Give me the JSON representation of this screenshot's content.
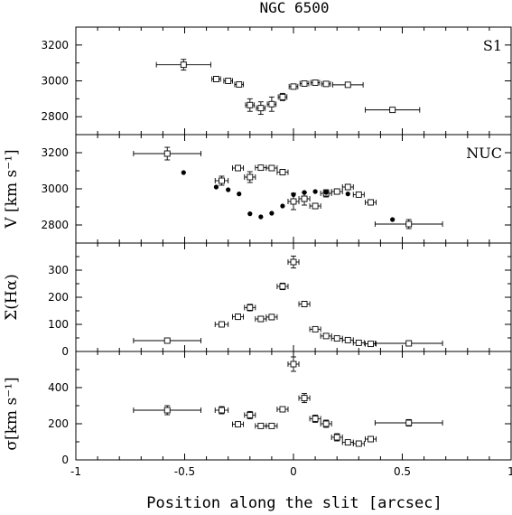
{
  "figure": {
    "title": "NGC 6500",
    "xlabel": "Position along the slit [arcsec]",
    "colors": {
      "ink": "#000000",
      "background": "#ffffff"
    }
  },
  "chart_data": [
    {
      "type": "scatter",
      "panel_label": "S1",
      "ylabel": "",
      "xlim": [
        -1,
        1
      ],
      "ylim": [
        2700,
        3300
      ],
      "yticks": [
        2800,
        3000,
        3200
      ],
      "series": [
        {
          "marker": "open-square",
          "points": [
            {
              "x": -0.505,
              "y": 3090,
              "xerr": 0.125,
              "yerr": 30
            },
            {
              "x": -0.355,
              "y": 3010,
              "xerr": 0.02,
              "yerr": 15
            },
            {
              "x": -0.3,
              "y": 3000,
              "xerr": 0.02,
              "yerr": 12
            },
            {
              "x": -0.25,
              "y": 2980,
              "xerr": 0.02,
              "yerr": 12
            },
            {
              "x": -0.2,
              "y": 2865,
              "xerr": 0.02,
              "yerr": 35
            },
            {
              "x": -0.15,
              "y": 2848,
              "xerr": 0.02,
              "yerr": 35
            },
            {
              "x": -0.1,
              "y": 2870,
              "xerr": 0.02,
              "yerr": 40
            },
            {
              "x": -0.05,
              "y": 2910,
              "xerr": 0.02,
              "yerr": 20
            },
            {
              "x": 0.0,
              "y": 2968,
              "xerr": 0.02,
              "yerr": 12
            },
            {
              "x": 0.05,
              "y": 2985,
              "xerr": 0.02,
              "yerr": 8
            },
            {
              "x": 0.1,
              "y": 2990,
              "xerr": 0.02,
              "yerr": 8
            },
            {
              "x": 0.15,
              "y": 2983,
              "xerr": 0.02,
              "yerr": 8
            },
            {
              "x": 0.25,
              "y": 2978,
              "xerr": 0.07,
              "yerr": 5
            },
            {
              "x": 0.455,
              "y": 2838,
              "xerr": 0.125,
              "yerr": 12
            }
          ]
        }
      ]
    },
    {
      "type": "scatter",
      "panel_label": "NUC",
      "ylabel": "V [km s⁻¹]",
      "xlim": [
        -1,
        1
      ],
      "ylim": [
        2700,
        3300
      ],
      "yticks": [
        2800,
        3000,
        3200
      ],
      "series": [
        {
          "marker": "open-square",
          "points": [
            {
              "x": -0.58,
              "y": 3195,
              "xerr": 0.155,
              "yerr": 35
            },
            {
              "x": -0.33,
              "y": 3045,
              "xerr": 0.03,
              "yerr": 25
            },
            {
              "x": -0.255,
              "y": 3115,
              "xerr": 0.025,
              "yerr": 15
            },
            {
              "x": -0.2,
              "y": 3065,
              "xerr": 0.025,
              "yerr": 30
            },
            {
              "x": -0.15,
              "y": 3117,
              "xerr": 0.025,
              "yerr": 10
            },
            {
              "x": -0.1,
              "y": 3115,
              "xerr": 0.025,
              "yerr": 10
            },
            {
              "x": -0.05,
              "y": 3092,
              "xerr": 0.025,
              "yerr": 15
            },
            {
              "x": 0.0,
              "y": 2930,
              "xerr": 0.025,
              "yerr": 45
            },
            {
              "x": 0.05,
              "y": 2945,
              "xerr": 0.025,
              "yerr": 35
            },
            {
              "x": 0.1,
              "y": 2905,
              "xerr": 0.025,
              "yerr": 15
            },
            {
              "x": 0.15,
              "y": 2975,
              "xerr": 0.025,
              "yerr": 20
            },
            {
              "x": 0.2,
              "y": 2985,
              "xerr": 0.025,
              "yerr": 15
            },
            {
              "x": 0.25,
              "y": 3010,
              "xerr": 0.025,
              "yerr": 15
            },
            {
              "x": 0.3,
              "y": 2968,
              "xerr": 0.025,
              "yerr": 8
            },
            {
              "x": 0.355,
              "y": 2925,
              "xerr": 0.025,
              "yerr": 15
            },
            {
              "x": 0.53,
              "y": 2805,
              "xerr": 0.155,
              "yerr": 25
            }
          ]
        },
        {
          "marker": "filled-circle",
          "points": [
            {
              "x": -0.505,
              "y": 3090
            },
            {
              "x": -0.355,
              "y": 3010
            },
            {
              "x": -0.3,
              "y": 2995
            },
            {
              "x": -0.25,
              "y": 2972
            },
            {
              "x": -0.2,
              "y": 2862
            },
            {
              "x": -0.15,
              "y": 2845
            },
            {
              "x": -0.1,
              "y": 2865
            },
            {
              "x": -0.05,
              "y": 2905
            },
            {
              "x": 0.0,
              "y": 2968
            },
            {
              "x": 0.05,
              "y": 2980
            },
            {
              "x": 0.1,
              "y": 2985
            },
            {
              "x": 0.15,
              "y": 2980
            },
            {
              "x": 0.25,
              "y": 2972
            },
            {
              "x": 0.455,
              "y": 2830
            }
          ]
        }
      ]
    },
    {
      "type": "scatter",
      "panel_label": "",
      "ylabel": "Σ(Hα)",
      "xlim": [
        -1,
        1
      ],
      "ylim": [
        0,
        400
      ],
      "yticks": [
        0,
        100,
        200,
        300
      ],
      "series": [
        {
          "marker": "open-square",
          "points": [
            {
              "x": -0.58,
              "y": 40,
              "xerr": 0.155,
              "yerr": 5
            },
            {
              "x": -0.33,
              "y": 100,
              "xerr": 0.03,
              "yerr": 8
            },
            {
              "x": -0.255,
              "y": 128,
              "xerr": 0.025,
              "yerr": 10
            },
            {
              "x": -0.2,
              "y": 162,
              "xerr": 0.025,
              "yerr": 12
            },
            {
              "x": -0.15,
              "y": 120,
              "xerr": 0.025,
              "yerr": 10
            },
            {
              "x": -0.1,
              "y": 127,
              "xerr": 0.025,
              "yerr": 10
            },
            {
              "x": -0.05,
              "y": 240,
              "xerr": 0.025,
              "yerr": 12
            },
            {
              "x": 0.0,
              "y": 330,
              "xerr": 0.025,
              "yerr": 22
            },
            {
              "x": 0.05,
              "y": 175,
              "xerr": 0.025,
              "yerr": 10
            },
            {
              "x": 0.1,
              "y": 82,
              "xerr": 0.025,
              "yerr": 8
            },
            {
              "x": 0.15,
              "y": 57,
              "xerr": 0.025,
              "yerr": 5
            },
            {
              "x": 0.2,
              "y": 48,
              "xerr": 0.025,
              "yerr": 5
            },
            {
              "x": 0.25,
              "y": 42,
              "xerr": 0.025,
              "yerr": 5
            },
            {
              "x": 0.3,
              "y": 32,
              "xerr": 0.025,
              "yerr": 4
            },
            {
              "x": 0.355,
              "y": 28,
              "xerr": 0.025,
              "yerr": 4
            },
            {
              "x": 0.53,
              "y": 30,
              "xerr": 0.155,
              "yerr": 4
            }
          ]
        }
      ]
    },
    {
      "type": "scatter",
      "panel_label": "",
      "ylabel": "σ[km s⁻¹]",
      "xlim": [
        -1,
        1
      ],
      "ylim": [
        0,
        600
      ],
      "yticks": [
        0,
        200,
        400
      ],
      "xticks": [
        -1,
        -0.5,
        0,
        0.5,
        1
      ],
      "series": [
        {
          "marker": "open-square",
          "points": [
            {
              "x": -0.58,
              "y": 275,
              "xerr": 0.155,
              "yerr": 25
            },
            {
              "x": -0.33,
              "y": 275,
              "xerr": 0.03,
              "yerr": 20
            },
            {
              "x": -0.255,
              "y": 197,
              "xerr": 0.025,
              "yerr": 12
            },
            {
              "x": -0.2,
              "y": 248,
              "xerr": 0.025,
              "yerr": 20
            },
            {
              "x": -0.15,
              "y": 188,
              "xerr": 0.025,
              "yerr": 8
            },
            {
              "x": -0.1,
              "y": 188,
              "xerr": 0.025,
              "yerr": 8
            },
            {
              "x": -0.05,
              "y": 280,
              "xerr": 0.025,
              "yerr": 12
            },
            {
              "x": 0.0,
              "y": 530,
              "xerr": 0.025,
              "yerr": 40
            },
            {
              "x": 0.05,
              "y": 342,
              "xerr": 0.025,
              "yerr": 25
            },
            {
              "x": 0.1,
              "y": 228,
              "xerr": 0.025,
              "yerr": 20
            },
            {
              "x": 0.15,
              "y": 200,
              "xerr": 0.025,
              "yerr": 20
            },
            {
              "x": 0.2,
              "y": 125,
              "xerr": 0.025,
              "yerr": 20
            },
            {
              "x": 0.25,
              "y": 97,
              "xerr": 0.025,
              "yerr": 10
            },
            {
              "x": 0.3,
              "y": 90,
              "xerr": 0.025,
              "yerr": 8
            },
            {
              "x": 0.355,
              "y": 115,
              "xerr": 0.025,
              "yerr": 15
            },
            {
              "x": 0.53,
              "y": 205,
              "xerr": 0.155,
              "yerr": 18
            }
          ]
        }
      ]
    }
  ]
}
